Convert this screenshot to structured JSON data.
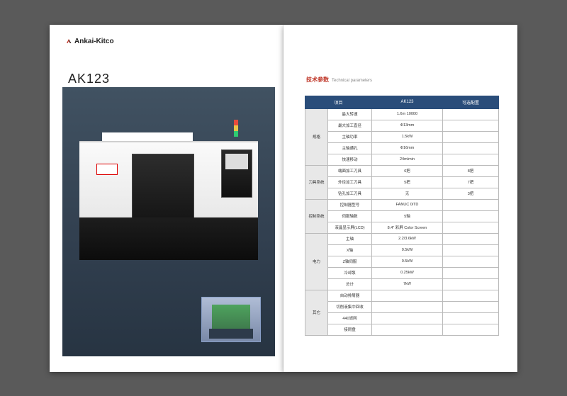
{
  "brand": {
    "name": "Ankai-Kitco"
  },
  "model": "AK123",
  "section_title": {
    "zh": "技术参数",
    "en": "Technical parameters"
  },
  "colors": {
    "page_bg": "#ffffff",
    "stage_bg": "#5a5a5a",
    "hero_grad_top": "#415262",
    "hero_grad_bot": "#273442",
    "table_header_bg": "#2a4d7a",
    "table_header_fg": "#ffffff",
    "cat_bg": "#e8e8e8",
    "title_color": "#c0392b",
    "border": "#bbbbbb"
  },
  "table": {
    "headers": [
      "项目",
      "",
      "AK123",
      "可选配置"
    ],
    "groups": [
      {
        "cat": "规格",
        "rows": [
          {
            "label": "最大转速",
            "val": "1.6m 10000",
            "opt": ""
          },
          {
            "label": "最大加工直径",
            "val": "Φ13mm",
            "opt": ""
          },
          {
            "label": "主轴功率",
            "val": "1.5kW",
            "opt": ""
          },
          {
            "label": "主轴通孔",
            "val": "Φ16mm",
            "opt": ""
          },
          {
            "label": "快速移动",
            "val": "24m/min",
            "opt": ""
          }
        ]
      },
      {
        "cat": "刀具系统",
        "rows": [
          {
            "label": "端面加工刀具",
            "val": "6把",
            "opt": "8把"
          },
          {
            "label": "外径加工刀具",
            "val": "5把",
            "opt": "7把"
          },
          {
            "label": "钻孔加工刀具",
            "val": "无",
            "opt": "3把"
          }
        ]
      },
      {
        "cat": "控制系统",
        "rows": [
          {
            "label": "控制器型号",
            "val": "FANUC 0iTD",
            "opt": ""
          },
          {
            "label": "伺服轴数",
            "val": "5轴",
            "opt": ""
          },
          {
            "label": "液晶显示屏(LCD)",
            "val": "8.4\" 彩屏 Color Screen",
            "opt": ""
          }
        ]
      },
      {
        "cat": "电力",
        "rows": [
          {
            "label": "主轴",
            "val": "2.2/3.6kW",
            "opt": ""
          },
          {
            "label": "X轴",
            "val": "0.5kW",
            "opt": ""
          },
          {
            "label": "Z轴伺服",
            "val": "0.5kW",
            "opt": ""
          },
          {
            "label": "冷却泵",
            "val": "0.25kW",
            "opt": ""
          },
          {
            "label": "总计",
            "val": "7kW",
            "opt": ""
          }
        ]
      },
      {
        "cat": "其它",
        "rows": [
          {
            "label": "自动排屑器",
            "val": "",
            "opt": ""
          },
          {
            "label": "切削液集中回收",
            "val": "",
            "opt": ""
          },
          {
            "label": "440滤网",
            "val": "",
            "opt": ""
          },
          {
            "label": "接屑盘",
            "val": "",
            "opt": ""
          }
        ]
      }
    ]
  }
}
